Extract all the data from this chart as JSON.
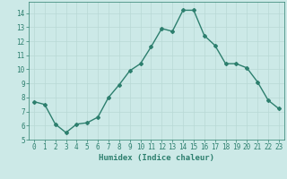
{
  "x": [
    0,
    1,
    2,
    3,
    4,
    5,
    6,
    7,
    8,
    9,
    10,
    11,
    12,
    13,
    14,
    15,
    16,
    17,
    18,
    19,
    20,
    21,
    22,
    23
  ],
  "y": [
    7.7,
    7.5,
    6.1,
    5.5,
    6.1,
    6.2,
    6.6,
    8.0,
    8.9,
    9.9,
    10.4,
    11.6,
    12.9,
    12.7,
    14.2,
    14.2,
    12.4,
    11.7,
    10.4,
    10.4,
    10.1,
    9.1,
    7.8,
    7.2
  ],
  "line_color": "#2d7f6e",
  "bg_color": "#cce9e7",
  "grid_color": "#b8d8d5",
  "tick_color": "#2d7f6e",
  "xlabel": "Humidex (Indice chaleur)",
  "xlim": [
    -0.5,
    23.5
  ],
  "ylim": [
    5,
    14.8
  ],
  "yticks": [
    5,
    6,
    7,
    8,
    9,
    10,
    11,
    12,
    13,
    14
  ],
  "xticks": [
    0,
    1,
    2,
    3,
    4,
    5,
    6,
    7,
    8,
    9,
    10,
    11,
    12,
    13,
    14,
    15,
    16,
    17,
    18,
    19,
    20,
    21,
    22,
    23
  ],
  "xlabel_fontsize": 6.5,
  "tick_fontsize": 5.5,
  "marker": "D",
  "marker_size": 2.0,
  "line_width": 1.0
}
